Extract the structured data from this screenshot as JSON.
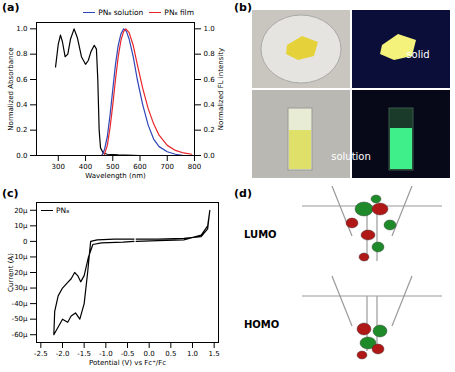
{
  "chart_data": [
    {
      "type": "line",
      "title": "(a)",
      "x_label": "Wavelength (nm)",
      "y_label": "Normalized Absorbance",
      "y2_label": "Normalized FL intensity",
      "xlim": [
        220,
        800
      ],
      "xticks": [
        300,
        400,
        500,
        600,
        700,
        800
      ],
      "ylim": [
        0,
        1.05
      ],
      "yticks": [
        {
          "value": 0,
          "label": "0.0"
        },
        {
          "value": 0.2,
          "label": "0.2"
        },
        {
          "value": 0.4,
          "label": "0.4"
        },
        {
          "value": 0.6,
          "label": "0.6"
        },
        {
          "value": 0.8,
          "label": "0.8"
        },
        {
          "value": 1,
          "label": "1.0"
        }
      ],
      "y2lim": [
        0,
        1.05
      ],
      "y2ticks": [
        {
          "value": 0,
          "label": "0.0"
        },
        {
          "value": 0.2,
          "label": "0.2"
        },
        {
          "value": 0.4,
          "label": "0.4"
        },
        {
          "value": 0.6,
          "label": "0.6"
        },
        {
          "value": 0.8,
          "label": "0.8"
        },
        {
          "value": 1,
          "label": "1.0"
        }
      ],
      "legend": "top-right",
      "series": [
        {
          "color": "#000000",
          "x": [
            290,
            300,
            308,
            315,
            325,
            335,
            345,
            358,
            370,
            385,
            400,
            410,
            420,
            432,
            440,
            445,
            450,
            455,
            465,
            480,
            520,
            600
          ],
          "values": [
            0.7,
            0.88,
            0.95,
            0.9,
            0.78,
            0.8,
            0.92,
            1.0,
            0.93,
            0.78,
            0.72,
            0.75,
            0.82,
            0.87,
            0.84,
            0.6,
            0.2,
            0.06,
            0.02,
            0.01,
            0.005,
            0.0
          ]
        },
        {
          "name": "PN₈ solution",
          "color": "#2f45b8",
          "axis": "y2",
          "x": [
            460,
            470,
            480,
            490,
            500,
            510,
            520,
            530,
            540,
            550,
            560,
            575,
            590,
            610,
            630,
            650,
            670,
            700,
            730,
            760
          ],
          "values": [
            0.0,
            0.05,
            0.15,
            0.32,
            0.52,
            0.72,
            0.87,
            0.96,
            1.0,
            0.98,
            0.92,
            0.78,
            0.6,
            0.4,
            0.24,
            0.13,
            0.07,
            0.03,
            0.01,
            0.0
          ]
        },
        {
          "name": "PN₈ film",
          "color": "#e8262a",
          "axis": "y2",
          "x": [
            468,
            480,
            490,
            500,
            510,
            520,
            530,
            540,
            548,
            560,
            575,
            590,
            610,
            630,
            650,
            670,
            700,
            730,
            760,
            790
          ],
          "values": [
            0.0,
            0.08,
            0.22,
            0.4,
            0.6,
            0.78,
            0.91,
            0.98,
            1.0,
            0.97,
            0.87,
            0.72,
            0.53,
            0.37,
            0.25,
            0.16,
            0.08,
            0.04,
            0.02,
            0.01
          ]
        }
      ]
    },
    {
      "type": "line",
      "title": "(c)",
      "x_label": "Potential (V) vs Fc⁺/Fc",
      "y_label": "Current (A)",
      "xlim": [
        -2.6,
        1.6
      ],
      "xticks": [
        -2.5,
        {
          "value": -2,
          "label": "-2.0"
        },
        -1.5,
        {
          "value": -1,
          "label": "-1.0"
        },
        -0.5,
        {
          "value": 0,
          "label": "0.0"
        },
        0.5,
        {
          "value": 1,
          "label": "1.0"
        },
        1.5
      ],
      "ylim": [
        -6.5e-05,
        2.5e-05
      ],
      "yticks": [
        {
          "value": 2e-05,
          "label": "20μ"
        },
        {
          "value": 1e-05,
          "label": "10μ"
        },
        0,
        {
          "value": -1e-05,
          "label": "-10μ"
        },
        {
          "value": -2e-05,
          "label": "-20μ"
        },
        {
          "value": -3e-05,
          "label": "-30μ"
        },
        {
          "value": -4e-05,
          "label": "-40μ"
        },
        {
          "value": -5e-05,
          "label": "-50μ"
        },
        {
          "value": -6e-05,
          "label": "-60μ"
        }
      ],
      "legend": "top-left",
      "series": [
        {
          "name": "PN₈",
          "color": "#000000",
          "x": [
            -0.35,
            -0.8,
            -1.2,
            -1.35,
            -1.42,
            -1.5,
            -1.6,
            -1.7,
            -1.8,
            -1.88,
            -2.0,
            -2.1,
            -2.2,
            -2.18,
            -2.1,
            -2.0,
            -1.9,
            -1.8,
            -1.72,
            -1.65,
            -1.58,
            -1.5,
            -1.4,
            -1.3,
            -1.1,
            -0.6,
            -0.35,
            -0.3,
            -0.3,
            0.2,
            0.8,
            1.2,
            1.35,
            1.4,
            1.35,
            1.2,
            0.8,
            0.2,
            -0.3
          ],
          "values": [
            1.5e-06,
            1.5e-06,
            1e-06,
            0,
            -2e-05,
            -4e-05,
            -5e-05,
            -4.6e-05,
            -4.8e-05,
            -5.2e-05,
            -5e-05,
            -5.5e-05,
            -6e-05,
            -4.5e-05,
            -3.5e-05,
            -3e-05,
            -2.7e-05,
            -2.4e-05,
            -2e-05,
            -2.2e-05,
            -2.6e-05,
            -2.2e-05,
            -1e-05,
            -2e-06,
            -1e-06,
            -5e-07,
            0,
            null,
            1.5e-06,
            1.5e-06,
            2e-06,
            3e-06,
            8e-06,
            2e-05,
            1e-05,
            4e-06,
            1e-06,
            5e-07,
            0
          ]
        }
      ]
    }
  ],
  "images": [
    {
      "title": "(b)",
      "labels": [
        "solid",
        "solution"
      ]
    },
    {
      "title": "(d)",
      "labels": [
        "LUMO",
        "HOMO"
      ]
    }
  ]
}
